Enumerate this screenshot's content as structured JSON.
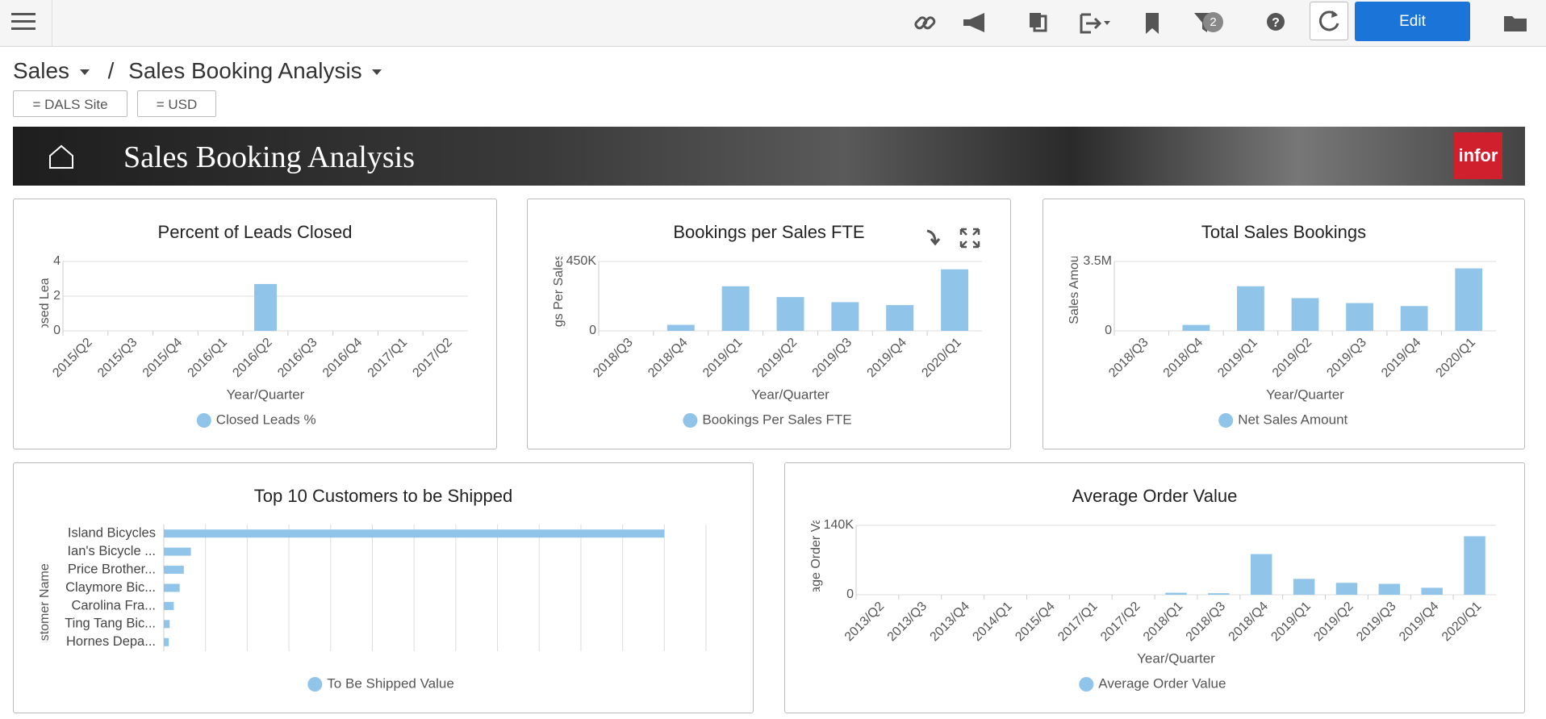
{
  "toolbar": {
    "filter_badge": 2,
    "edit_button": "Edit"
  },
  "breadcrumb": {
    "parent": "Sales",
    "separator": "/",
    "current": "Sales Booking Analysis"
  },
  "filters": [
    "= DALS Site",
    "= USD"
  ],
  "banner": {
    "title": "Sales Booking Analysis",
    "logo": "infor"
  },
  "chart_data": [
    {
      "type": "bar",
      "title": "Percent of Leads Closed",
      "x_label": "Year/Quarter",
      "y_label": "Closed Leads %",
      "categories": [
        "2015/Q2",
        "2015/Q3",
        "2015/Q4",
        "2016/Q1",
        "2016/Q2",
        "2016/Q3",
        "2016/Q4",
        "2017/Q1",
        "2017/Q2"
      ],
      "series": [
        {
          "name": "Closed Leads %",
          "color": "#90c4e8",
          "values": [
            0,
            0,
            0,
            0,
            2.7,
            0,
            0,
            0,
            0
          ]
        }
      ],
      "ylim": [
        0,
        4
      ],
      "yticks": [
        0,
        2,
        4
      ],
      "grid": true
    },
    {
      "type": "bar",
      "title": "Bookings per Sales FTE",
      "x_label": "Year/Quarter",
      "y_label": "Bookings Per Sales FTE",
      "categories": [
        "2018/Q3",
        "2018/Q4",
        "2019/Q1",
        "2019/Q2",
        "2019/Q3",
        "2019/Q4",
        "2020/Q1"
      ],
      "series": [
        {
          "name": "Bookings Per Sales FTE",
          "color": "#90c4e8",
          "values": [
            0,
            39000,
            289000,
            219000,
            186000,
            167000,
            399000
          ]
        }
      ],
      "ylim": [
        0,
        450000
      ],
      "yticks": [
        0,
        {
          "value": 450000,
          "label": "450K"
        }
      ],
      "grid": true
    },
    {
      "type": "bar",
      "title": "Total Sales Bookings",
      "x_label": "Year/Quarter",
      "y_label": "Net Sales Amount",
      "categories": [
        "2018/Q3",
        "2018/Q4",
        "2019/Q1",
        "2019/Q2",
        "2019/Q3",
        "2019/Q4",
        "2020/Q1"
      ],
      "series": [
        {
          "name": "Net Sales Amount",
          "color": "#90c4e8",
          "values": [
            0,
            300000,
            2250000,
            1650000,
            1400000,
            1250000,
            3150000
          ]
        }
      ],
      "ylim": [
        0,
        3500000
      ],
      "yticks": [
        0,
        {
          "value": 3500000,
          "label": "3.5M"
        }
      ],
      "grid": true
    },
    {
      "type": "hbar",
      "title": "Top 10 Customers to be Shipped",
      "y_label": "Customer Name",
      "categories": [
        "Island Bicycles",
        "Ian's Bicycle ...",
        "Price Brother...",
        "Claymore Bic...",
        "Carolina Fra...",
        "Ting Tang Bic...",
        "Hornes Depa..."
      ],
      "series": [
        {
          "name": "To Be Shipped Value",
          "color": "#90c4e8",
          "values": [
            12,
            0.65,
            0.48,
            0.38,
            0.24,
            0.14,
            0.12
          ]
        }
      ],
      "xlim": [
        0,
        13
      ],
      "grid": true
    },
    {
      "type": "bar",
      "title": "Average Order Value",
      "x_label": "Year/Quarter",
      "y_label": "Average Order Value",
      "categories": [
        "2013/Q2",
        "2013/Q3",
        "2013/Q4",
        "2014/Q1",
        "2015/Q4",
        "2017/Q1",
        "2017/Q2",
        "2018/Q1",
        "2018/Q3",
        "2018/Q4",
        "2019/Q1",
        "2019/Q2",
        "2019/Q3",
        "2019/Q4",
        "2020/Q1"
      ],
      "series": [
        {
          "name": "Average Order Value",
          "color": "#90c4e8",
          "values": [
            0,
            0,
            0,
            0,
            0,
            0,
            0,
            4000,
            3000,
            82000,
            32000,
            24000,
            22000,
            14000,
            118000
          ]
        }
      ],
      "ylim": [
        0,
        140000
      ],
      "yticks": [
        0,
        {
          "value": 140000,
          "label": "140K"
        }
      ],
      "grid": true
    }
  ]
}
